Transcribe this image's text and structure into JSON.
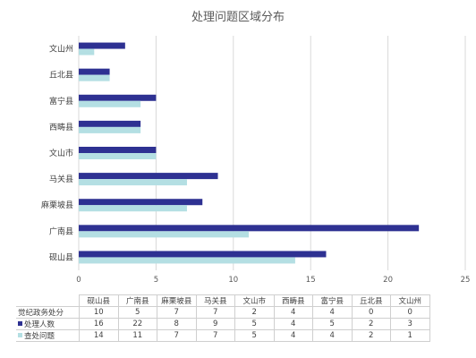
{
  "chart_data": {
    "type": "bar",
    "orientation": "horizontal",
    "title": "处理问题区域分布",
    "categories": [
      "砚山县",
      "广南县",
      "麻栗坡县",
      "马关县",
      "文山市",
      "西畴县",
      "富宁县",
      "丘北县",
      "文山州"
    ],
    "series": [
      {
        "name": "觉纪政务处分",
        "values": [
          10,
          5,
          7,
          7,
          2,
          4,
          4,
          0,
          0
        ],
        "color": null,
        "plotted": false
      },
      {
        "name": "处理人数",
        "values": [
          16,
          22,
          8,
          9,
          5,
          4,
          5,
          2,
          3
        ],
        "color": "#2e3192"
      },
      {
        "name": "查处问题",
        "values": [
          14,
          11,
          7,
          7,
          5,
          4,
          4,
          2,
          1
        ],
        "color": "#b4dfe3"
      }
    ],
    "xlim": [
      0,
      25
    ],
    "xticks": [
      "0",
      "5",
      "10",
      "15",
      "20",
      "25"
    ],
    "grid": true,
    "legend": "data-table"
  }
}
